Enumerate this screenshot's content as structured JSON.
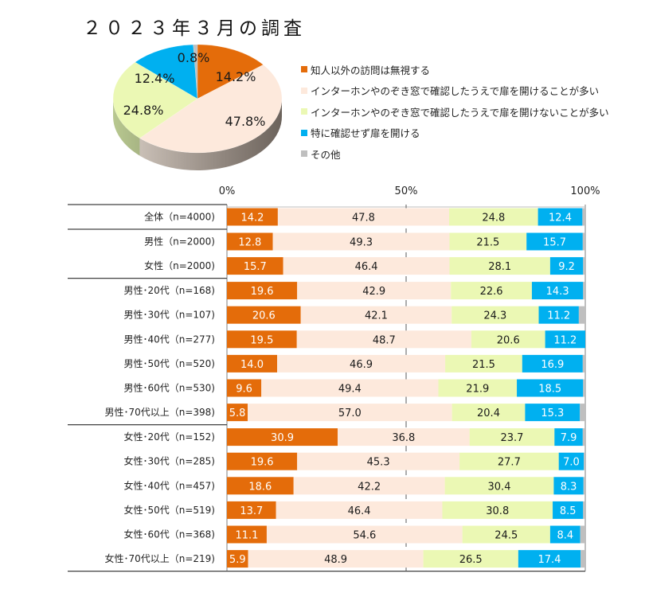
{
  "colors": {
    "ignore": "#e46c0a",
    "open_after_check": "#fde9dc",
    "not_open_after_check": "#ebf8b4",
    "open_without_check": "#00b0f0",
    "other": "#bfbfbf"
  },
  "title": "２０２３年３月の調査",
  "legend": [
    {
      "key": "ignore",
      "label": "知人以外の訪問は無視する"
    },
    {
      "key": "open_after_check",
      "label": "インターホンやのぞき窓で確認したうえで扉を開けることが多い"
    },
    {
      "key": "not_open_after_check",
      "label": "インターホンやのぞき窓で確認したうえで扉を開けないことが多い"
    },
    {
      "key": "open_without_check",
      "label": "特に確認せず扉を開ける"
    },
    {
      "key": "other",
      "label": "その他"
    }
  ],
  "chart_data": [
    {
      "type": "pie",
      "title": "２０２３年３月の調査",
      "slices": [
        {
          "key": "ignore",
          "label": "知人以外の訪問は無視する",
          "value": 14.2,
          "text": "14.2%"
        },
        {
          "key": "open_after_check",
          "label": "インターホンやのぞき窓で確認したうえで扉を開けることが多い",
          "value": 47.8,
          "text": "47.8%"
        },
        {
          "key": "not_open_after_check",
          "label": "インターホンやのぞき窓で確認したうえで扉を開けないことが多い",
          "value": 24.8,
          "text": "24.8%"
        },
        {
          "key": "open_without_check",
          "label": "特に確認せず扉を開ける",
          "value": 12.4,
          "text": "12.4%"
        },
        {
          "key": "other",
          "label": "その他",
          "value": 0.8,
          "text": "0.8%"
        }
      ],
      "style": "3d",
      "legend": "right"
    },
    {
      "type": "bar",
      "orientation": "horizontal",
      "stacked": "100%",
      "xlim": [
        0,
        100
      ],
      "xticks": [
        "0%",
        "50%",
        "100%"
      ],
      "grid": "50% dashed line",
      "series_keys": [
        "ignore",
        "open_after_check",
        "not_open_after_check",
        "open_without_check",
        "other"
      ],
      "series_names": [
        "知人以外の訪問は無視する",
        "インターホンやのぞき窓で確認したうえで扉を開けることが多い",
        "インターホンやのぞき窓で確認したうえで扉を開けないことが多い",
        "特に確認せず扉を開ける",
        "その他"
      ],
      "groups": [
        {
          "rows": [
            {
              "label": "全体（n=4000)",
              "values": [
                14.2,
                47.8,
                24.8,
                12.4,
                0.8
              ]
            }
          ]
        },
        {
          "rows": [
            {
              "label": "男性（n=2000)",
              "values": [
                12.8,
                49.3,
                21.5,
                15.7,
                0.7
              ]
            },
            {
              "label": "女性（n=2000)",
              "values": [
                15.7,
                46.4,
                28.1,
                9.2,
                0.6
              ]
            }
          ]
        },
        {
          "rows": [
            {
              "label": "男性･20代（n=168)",
              "values": [
                19.6,
                42.9,
                22.6,
                14.3,
                0.6
              ]
            },
            {
              "label": "男性･30代（n=107)",
              "values": [
                20.6,
                42.1,
                24.3,
                11.2,
                1.8
              ]
            },
            {
              "label": "男性･40代（n=277)",
              "values": [
                19.5,
                48.7,
                20.6,
                11.2,
                0.0
              ]
            },
            {
              "label": "男性･50代（n=520)",
              "values": [
                14.0,
                46.9,
                21.5,
                16.9,
                0.7
              ]
            },
            {
              "label": "男性･60代（n=530)",
              "values": [
                9.6,
                49.4,
                21.9,
                18.5,
                0.6
              ]
            },
            {
              "label": "男性･70代以上（n=398)",
              "values": [
                5.8,
                57.0,
                20.4,
                15.3,
                1.5
              ]
            }
          ]
        },
        {
          "rows": [
            {
              "label": "女性･20代（n=152)",
              "values": [
                30.9,
                36.8,
                23.7,
                7.9,
                0.7
              ]
            },
            {
              "label": "女性･30代（n=285)",
              "values": [
                19.6,
                45.3,
                27.7,
                7.0,
                0.4
              ]
            },
            {
              "label": "女性･40代（n=457)",
              "values": [
                18.6,
                42.2,
                30.4,
                8.3,
                0.5
              ]
            },
            {
              "label": "女性･50代（n=519)",
              "values": [
                13.7,
                46.4,
                30.8,
                8.5,
                0.6
              ]
            },
            {
              "label": "女性･60代（n=368)",
              "values": [
                11.1,
                54.6,
                24.5,
                8.4,
                1.4
              ]
            },
            {
              "label": "女性･70代以上（n=219)",
              "values": [
                5.9,
                48.9,
                26.5,
                17.4,
                1.3
              ]
            }
          ]
        }
      ],
      "label_series_count": 4
    }
  ]
}
